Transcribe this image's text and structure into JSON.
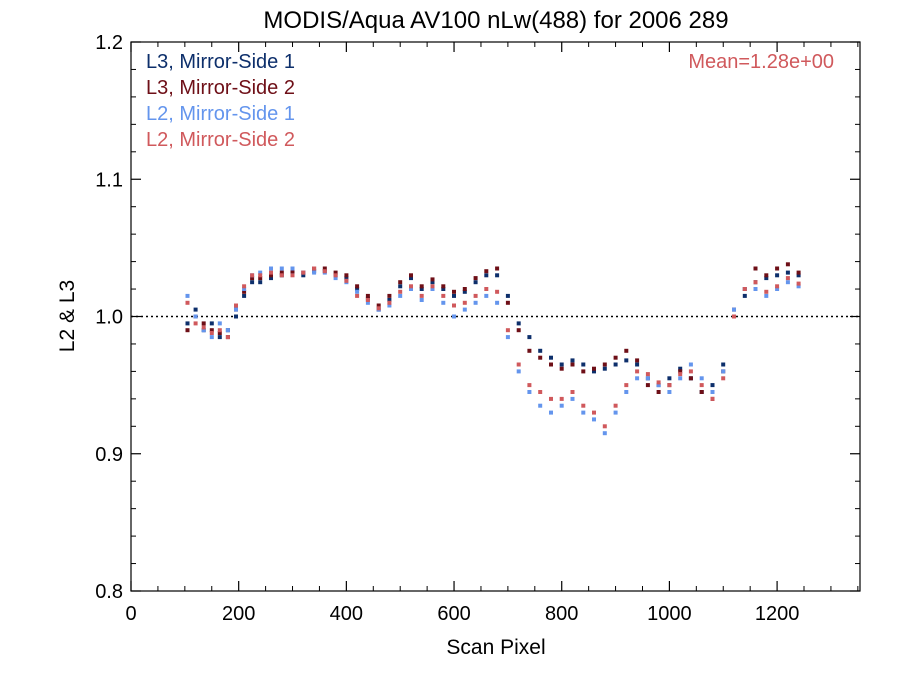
{
  "chart_data": {
    "type": "scatter",
    "title": "MODIS/Aqua AV100 nLw(488) for 2006 289",
    "xlabel": "Scan Pixel",
    "ylabel": "L2 & L3",
    "xlim": [
      0,
      1354
    ],
    "ylim": [
      0.8,
      1.2
    ],
    "x_ticks": [
      0,
      200,
      400,
      600,
      800,
      1000,
      1200
    ],
    "x_tick_labels": [
      "0",
      "200",
      "400",
      "600",
      "800",
      "1000",
      "1200"
    ],
    "y_ticks": [
      0.8,
      0.9,
      1.0,
      1.1,
      1.2
    ],
    "y_tick_labels": [
      "0.8",
      "0.9",
      "1.0",
      "1.1",
      "1.2"
    ],
    "reference_line": {
      "y": 1.0,
      "style": "dotted"
    },
    "annotation": {
      "text": "Mean=1.28e+00",
      "color": "#d0595c"
    },
    "legend_placement": "top-left",
    "series": [
      {
        "name": "L3, Mirror-Side 1",
        "color": "#0d2f6b",
        "x": [
          105,
          120,
          135,
          150,
          165,
          180,
          195,
          210,
          225,
          240,
          260,
          280,
          300,
          320,
          340,
          360,
          380,
          400,
          420,
          440,
          460,
          480,
          500,
          520,
          540,
          560,
          580,
          600,
          620,
          640,
          660,
          680,
          700,
          720,
          740,
          760,
          780,
          800,
          820,
          840,
          860,
          880,
          900,
          920,
          940,
          960,
          980,
          1000,
          1020,
          1040,
          1060,
          1080,
          1100,
          1120,
          1140,
          1160,
          1180,
          1200,
          1220,
          1240
        ],
        "y": [
          0.995,
          1.005,
          0.99,
          0.995,
          0.985,
          0.99,
          1.0,
          1.015,
          1.025,
          1.025,
          1.028,
          1.03,
          1.032,
          1.03,
          1.033,
          1.033,
          1.03,
          1.028,
          1.02,
          1.013,
          1.005,
          1.012,
          1.022,
          1.028,
          1.02,
          1.025,
          1.02,
          1.015,
          1.018,
          1.025,
          1.03,
          1.03,
          1.015,
          0.995,
          0.985,
          0.975,
          0.97,
          0.965,
          0.968,
          0.965,
          0.96,
          0.962,
          0.965,
          0.968,
          0.965,
          0.955,
          0.95,
          0.955,
          0.962,
          0.955,
          0.945,
          0.95,
          0.965,
          1.0,
          1.015,
          1.025,
          1.028,
          1.03,
          1.032,
          1.03
        ]
      },
      {
        "name": "L3, Mirror-Side 2",
        "color": "#6e0f17",
        "x": [
          105,
          120,
          135,
          150,
          165,
          180,
          195,
          210,
          225,
          240,
          260,
          280,
          300,
          320,
          340,
          360,
          380,
          400,
          420,
          440,
          460,
          480,
          500,
          520,
          540,
          560,
          580,
          600,
          620,
          640,
          660,
          680,
          700,
          720,
          740,
          760,
          780,
          800,
          820,
          840,
          860,
          880,
          900,
          920,
          940,
          960,
          980,
          1000,
          1020,
          1040,
          1060,
          1080,
          1100,
          1120,
          1140,
          1160,
          1180,
          1200,
          1220,
          1240
        ],
        "y": [
          0.99,
          1.0,
          0.995,
          0.99,
          0.988,
          0.985,
          1.005,
          1.018,
          1.028,
          1.028,
          1.03,
          1.032,
          1.033,
          1.032,
          1.035,
          1.035,
          1.032,
          1.03,
          1.022,
          1.015,
          1.008,
          1.015,
          1.025,
          1.03,
          1.022,
          1.027,
          1.022,
          1.018,
          1.02,
          1.028,
          1.033,
          1.035,
          1.01,
          0.99,
          0.975,
          0.97,
          0.965,
          0.962,
          0.965,
          0.96,
          0.962,
          0.965,
          0.97,
          0.975,
          0.968,
          0.95,
          0.945,
          0.95,
          0.96,
          0.955,
          0.945,
          0.94,
          0.96,
          1.005,
          1.02,
          1.035,
          1.03,
          1.035,
          1.038,
          1.032
        ]
      },
      {
        "name": "L2, Mirror-Side 1",
        "color": "#6495ed",
        "x": [
          105,
          120,
          135,
          150,
          165,
          180,
          195,
          210,
          225,
          240,
          260,
          280,
          300,
          320,
          340,
          360,
          380,
          400,
          420,
          440,
          460,
          480,
          500,
          520,
          540,
          560,
          580,
          600,
          620,
          640,
          660,
          680,
          700,
          720,
          740,
          760,
          780,
          800,
          820,
          840,
          860,
          880,
          900,
          920,
          940,
          960,
          980,
          1000,
          1020,
          1040,
          1060,
          1080,
          1100,
          1120,
          1140,
          1160,
          1180,
          1200,
          1220,
          1240
        ],
        "y": [
          1.015,
          1.0,
          0.99,
          0.985,
          0.995,
          0.99,
          1.005,
          1.02,
          1.03,
          1.032,
          1.035,
          1.035,
          1.035,
          1.032,
          1.032,
          1.032,
          1.028,
          1.025,
          1.018,
          1.01,
          1.005,
          1.008,
          1.015,
          1.02,
          1.012,
          1.02,
          1.01,
          1.0,
          1.005,
          1.01,
          1.015,
          1.01,
          0.985,
          0.96,
          0.945,
          0.935,
          0.93,
          0.935,
          0.94,
          0.93,
          0.925,
          0.915,
          0.93,
          0.945,
          0.955,
          0.955,
          0.95,
          0.945,
          0.955,
          0.965,
          0.955,
          0.945,
          0.96,
          1.005,
          1.02,
          1.02,
          1.015,
          1.02,
          1.025,
          1.022
        ]
      },
      {
        "name": "L2, Mirror-Side 2",
        "color": "#d0595c",
        "x": [
          105,
          120,
          135,
          150,
          165,
          180,
          195,
          210,
          225,
          240,
          260,
          280,
          300,
          320,
          340,
          360,
          380,
          400,
          420,
          440,
          460,
          480,
          500,
          520,
          540,
          560,
          580,
          600,
          620,
          640,
          660,
          680,
          700,
          720,
          740,
          760,
          780,
          800,
          820,
          840,
          860,
          880,
          900,
          920,
          940,
          960,
          980,
          1000,
          1020,
          1040,
          1060,
          1080,
          1100,
          1120,
          1140,
          1160,
          1180,
          1200,
          1220,
          1240
        ],
        "y": [
          1.01,
          0.995,
          0.992,
          0.988,
          0.99,
          0.985,
          1.008,
          1.022,
          1.03,
          1.03,
          1.032,
          1.03,
          1.03,
          1.032,
          1.035,
          1.033,
          1.03,
          1.026,
          1.015,
          1.012,
          1.006,
          1.01,
          1.018,
          1.022,
          1.015,
          1.022,
          1.015,
          1.008,
          1.01,
          1.015,
          1.02,
          1.018,
          0.99,
          0.965,
          0.95,
          0.945,
          0.94,
          0.94,
          0.945,
          0.935,
          0.93,
          0.92,
          0.935,
          0.95,
          0.96,
          0.958,
          0.952,
          0.95,
          0.958,
          0.96,
          0.95,
          0.94,
          0.955,
          1.0,
          1.02,
          1.025,
          1.018,
          1.022,
          1.028,
          1.024
        ]
      }
    ]
  }
}
